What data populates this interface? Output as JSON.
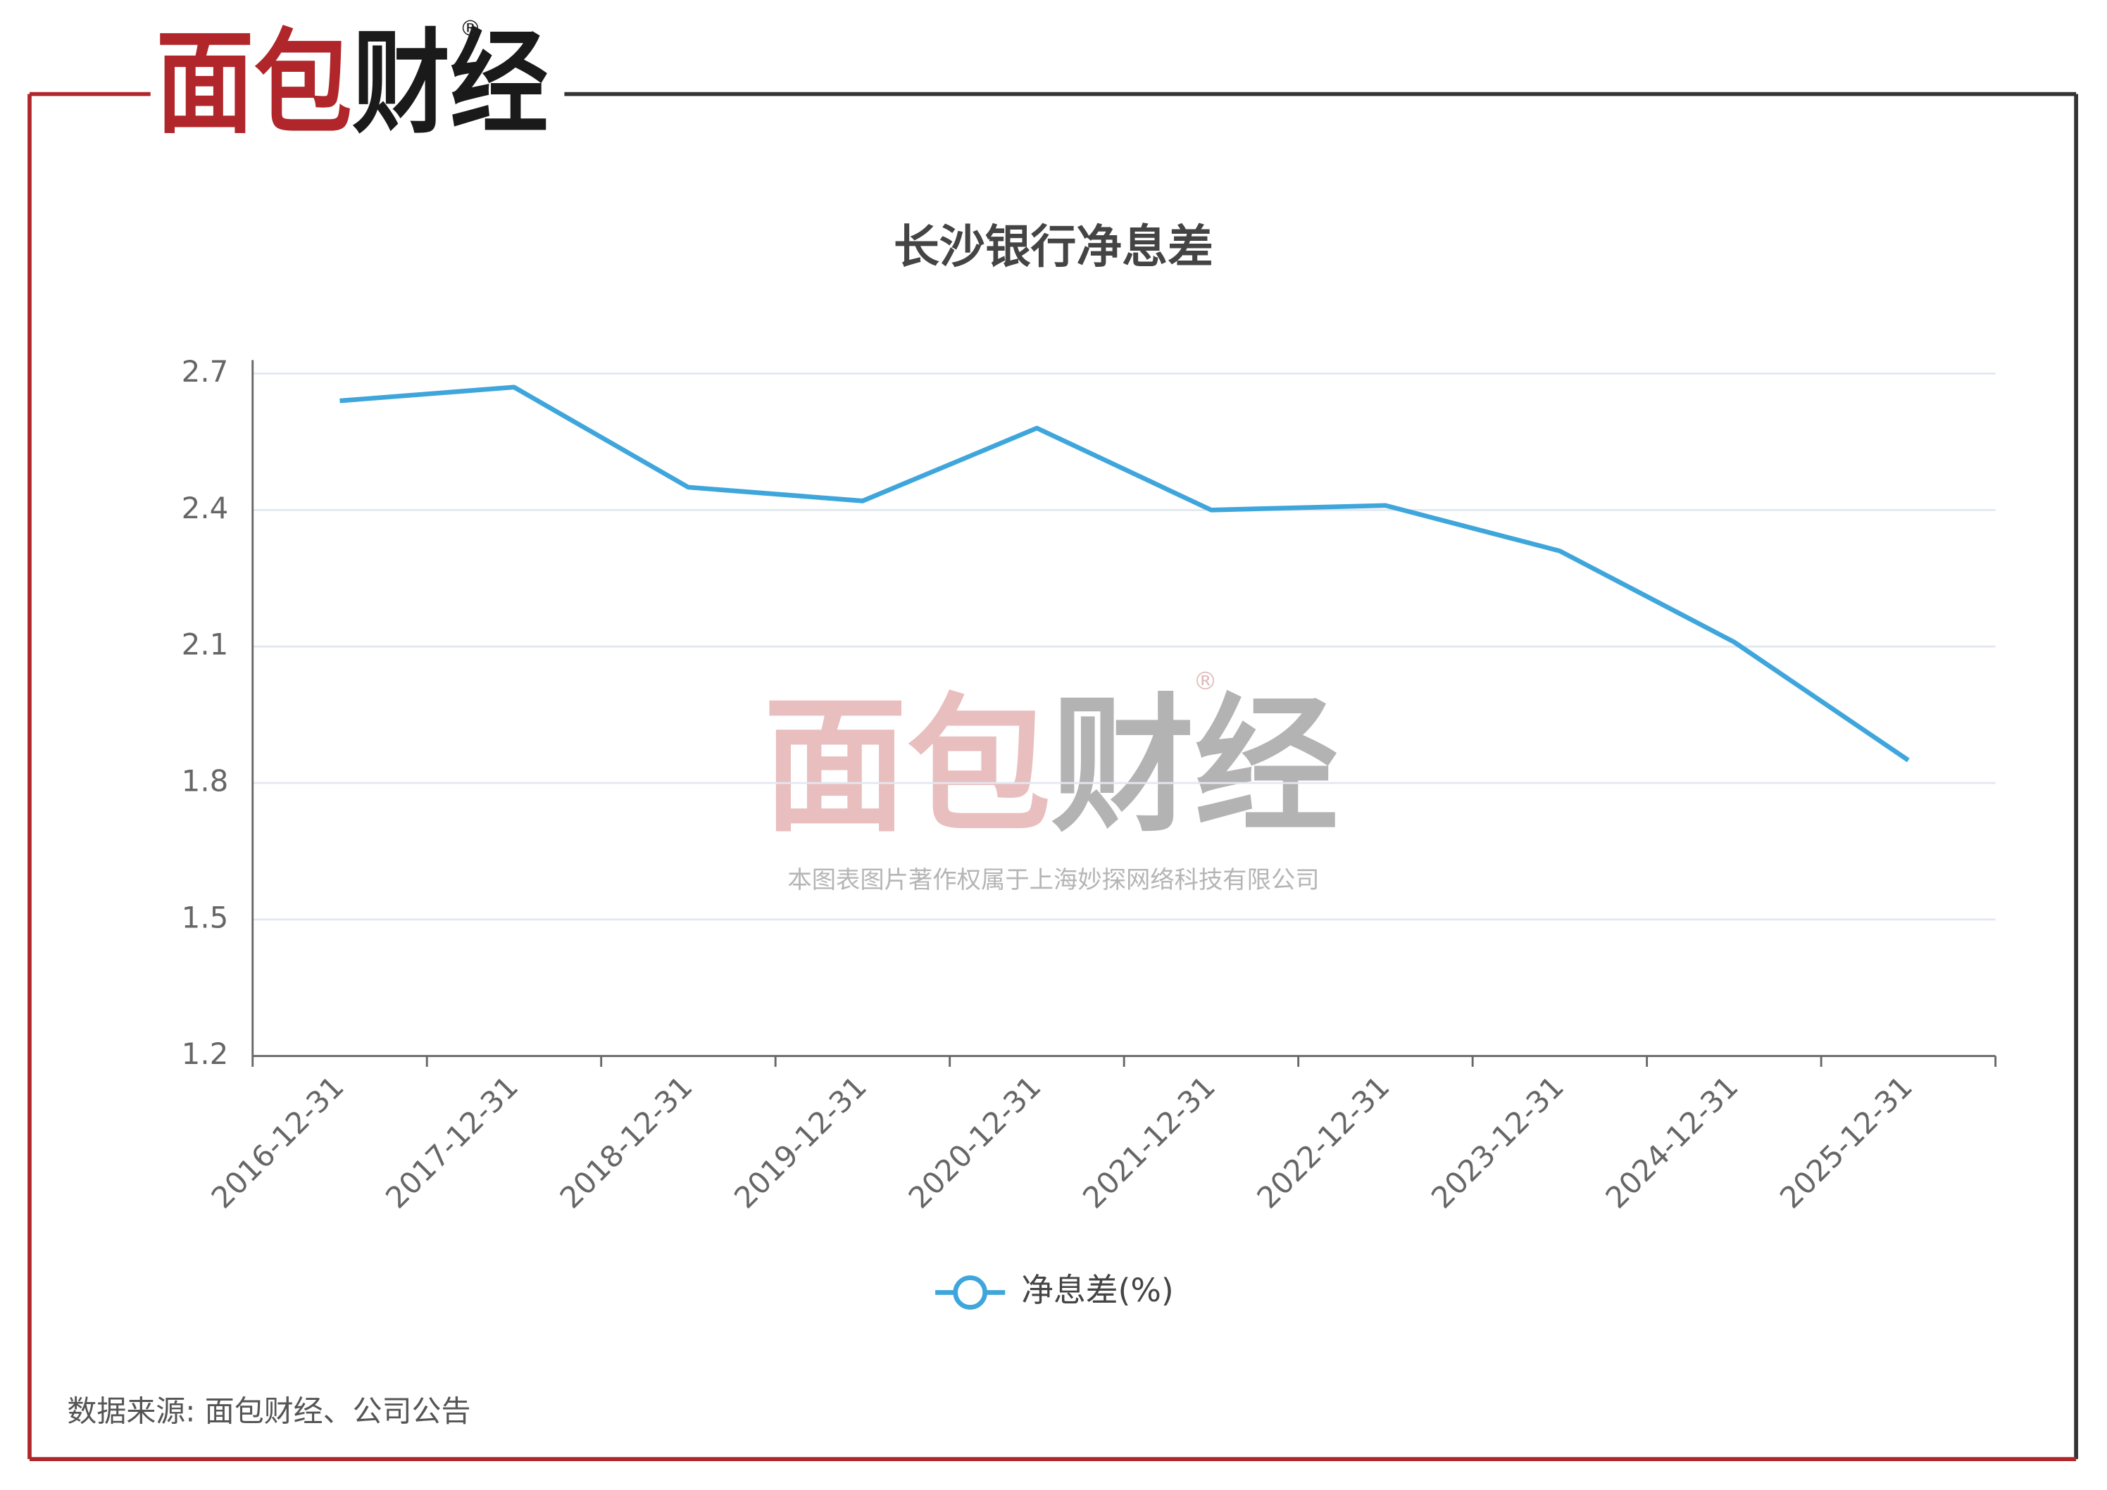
{
  "brand": {
    "logo": "面包财经",
    "mark": "®"
  },
  "watermark": {
    "logo": "面包财经",
    "mark": "®",
    "note": "本图表图片著作权属于上海妙探网络科技有限公司"
  },
  "chart_data": {
    "type": "line",
    "title": "长沙银行净息差",
    "categories": [
      "2016-12-31",
      "2017-12-31",
      "2018-12-31",
      "2019-12-31",
      "2020-12-31",
      "2021-12-31",
      "2022-12-31",
      "2023-12-31",
      "2024-12-31",
      "2025-12-31"
    ],
    "series": [
      {
        "name": "净息差(%)",
        "color": "#3fa6dc",
        "values": [
          2.64,
          2.67,
          2.45,
          2.42,
          2.58,
          2.4,
          2.41,
          2.31,
          2.11,
          1.85
        ]
      }
    ],
    "ylim": [
      1.2,
      2.7
    ],
    "yticks": [
      1.2,
      1.5,
      1.8,
      2.1,
      2.4,
      2.7
    ],
    "grid": true,
    "legend": "bottom"
  },
  "source": "数据来源: 面包财经、公司公告"
}
